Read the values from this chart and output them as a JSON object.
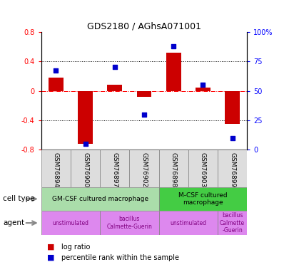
{
  "title": "GDS2180 / AGhsA071001",
  "samples": [
    "GSM76894",
    "GSM76900",
    "GSM76897",
    "GSM76902",
    "GSM76898",
    "GSM76903",
    "GSM76899"
  ],
  "log_ratio": [
    0.18,
    -0.72,
    0.08,
    -0.08,
    0.52,
    0.04,
    -0.45
  ],
  "percentile": [
    67,
    5,
    70,
    30,
    88,
    55,
    10
  ],
  "ylim_left": [
    -0.8,
    0.8
  ],
  "ylim_right": [
    0,
    100
  ],
  "yticks_left": [
    -0.8,
    -0.4,
    0,
    0.4,
    0.8
  ],
  "yticks_right": [
    0,
    25,
    50,
    75,
    100
  ],
  "bar_color": "#cc0000",
  "dot_color": "#0000cc",
  "cell_type_color_1": "#aaddaa",
  "cell_type_color_2": "#44cc44",
  "agent_color": "#dd88ee",
  "cell_type_groups": [
    {
      "label": "GM-CSF cultured macrophage",
      "start": 0,
      "end": 4
    },
    {
      "label": "M-CSF cultured\nmacrophage",
      "start": 4,
      "end": 7
    }
  ],
  "agent_groups": [
    {
      "label": "unstimulated",
      "start": 0,
      "end": 2
    },
    {
      "label": "bacillus\nCalmette-Guerin",
      "start": 2,
      "end": 4
    },
    {
      "label": "unstimulated",
      "start": 4,
      "end": 6
    },
    {
      "label": "bacillus\nCalmette\n-Guerin",
      "start": 6,
      "end": 7
    }
  ],
  "legend_items": [
    {
      "color": "#cc0000",
      "label": "log ratio"
    },
    {
      "color": "#0000cc",
      "label": "percentile rank within the sample"
    }
  ]
}
